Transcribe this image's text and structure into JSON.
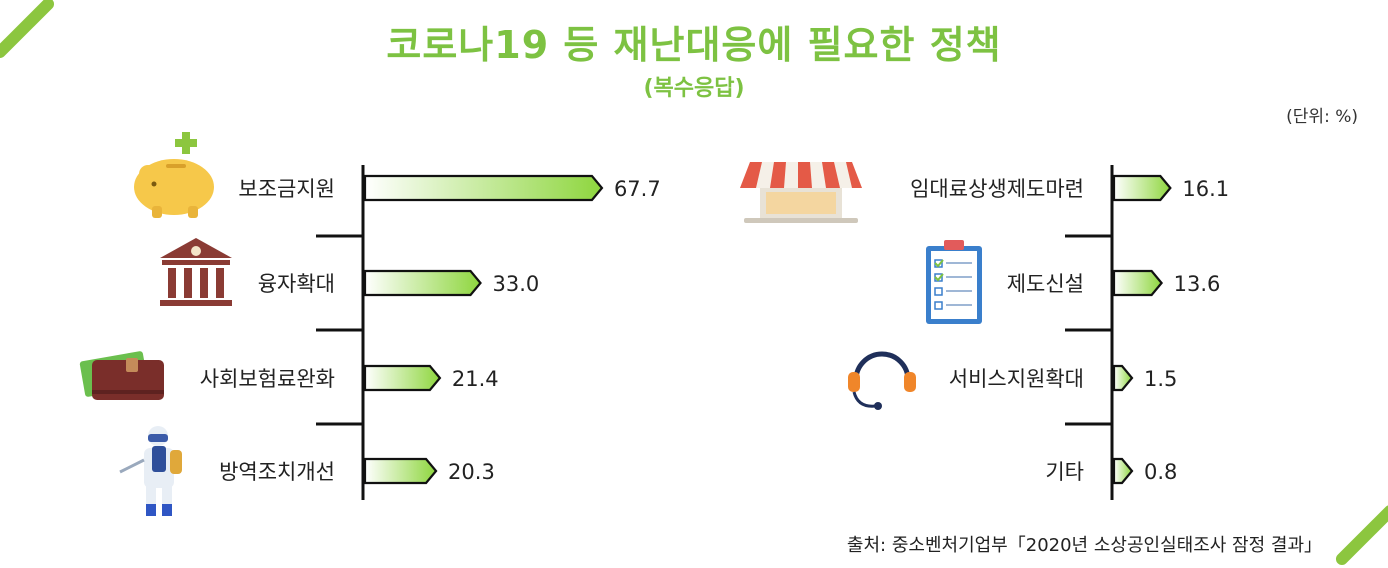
{
  "title": "코로나19 등 재난대응에 필요한 정책",
  "subtitle": "(복수응답)",
  "unit": "(단위: %)",
  "source": "출처: 중소벤처기업부「2020년 소상공인실태조사 잠정 결과」",
  "colors": {
    "accent": "#7dc242",
    "bar_start": "#ffffff",
    "bar_end": "#8ed63e"
  },
  "chart_data": {
    "type": "bar",
    "orientation": "horizontal",
    "panels": [
      {
        "categories": [
          "보조금지원",
          "융자확대",
          "사회보험료완화",
          "방역조치개선"
        ],
        "values": [
          67.7,
          33.0,
          21.4,
          20.3
        ],
        "value_labels": [
          "67.7",
          "33.0",
          "21.4",
          "20.3"
        ],
        "icons": [
          "piggy-bank-icon",
          "bank-icon",
          "wallet-icon",
          "disinfection-worker-icon"
        ]
      },
      {
        "categories": [
          "임대료상생제도마련",
          "제도신설",
          "서비스지원확대",
          "기타"
        ],
        "values": [
          16.1,
          13.6,
          1.5,
          0.8
        ],
        "value_labels": [
          "16.1",
          "13.6",
          "1.5",
          "0.8"
        ],
        "icons": [
          "store-awning-icon",
          "clipboard-checklist-icon",
          "headset-icon",
          ""
        ]
      }
    ],
    "grid": false,
    "legend": "none"
  }
}
